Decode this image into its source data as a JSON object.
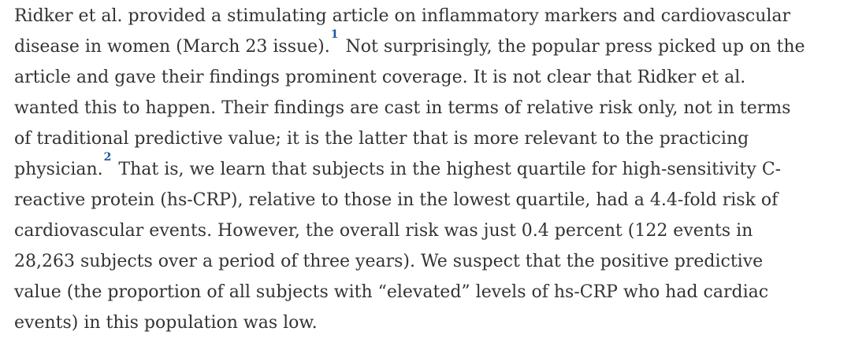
{
  "paragraph": {
    "lines": [
      {
        "text": "Ridker et al. provided a stimulating article on inflammatory markers and cardiovascular"
      },
      {
        "text": "disease in women (March 23 issue).",
        "ref": "1",
        "after": " Not surprisingly, the popular press picked up on the"
      },
      {
        "text": "article and gave their findings prominent coverage. It is not clear that Ridker et al."
      },
      {
        "text": "wanted this to happen. Their findings are cast in terms of relative risk only, not in terms"
      },
      {
        "text": "of traditional predictive value; it is the latter that is more relevant to the practicing"
      },
      {
        "text": "physician.",
        "ref": "2",
        "after": " That is, we learn that subjects in the highest quartile for high-sensitivity C-"
      },
      {
        "text": "reactive protein (hs-CRP), relative to those in the lowest quartile, had a 4.4-fold risk of"
      },
      {
        "text": "cardiovascular events. However, the overall risk was just 0.4 percent (122 events in"
      },
      {
        "text": "28,263 subjects over a period of three years). We suspect that the positive predictive"
      },
      {
        "text": "value (the proportion of all subjects with “elevated” levels of hs-CRP who had cardiac"
      },
      {
        "text": "events) in this population was low."
      }
    ]
  }
}
